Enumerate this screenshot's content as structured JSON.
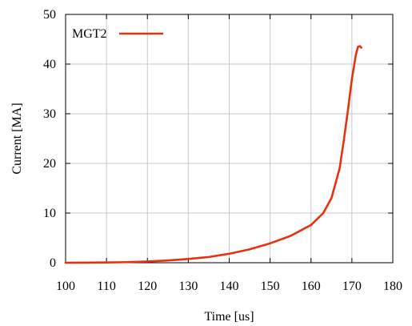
{
  "chart_data": {
    "type": "line",
    "title": "",
    "xlabel": "Time [us]",
    "ylabel": "Current [MA]",
    "xlim": [
      100,
      180
    ],
    "ylim": [
      0,
      50
    ],
    "x_ticks": [
      "100",
      "110",
      "120",
      "130",
      "140",
      "150",
      "160",
      "170",
      "180"
    ],
    "y_ticks": [
      "0",
      "10",
      "20",
      "30",
      "40",
      "50"
    ],
    "grid": true,
    "legend_position": "top-left",
    "series": [
      {
        "name": "MGT2",
        "color": "#e8320e",
        "x": [
          100,
          110,
          115,
          120,
          125,
          130,
          135,
          140,
          145,
          150,
          155,
          160,
          163,
          165,
          167,
          168,
          169,
          170,
          171,
          171.5,
          172,
          172.3
        ],
        "y": [
          0.0,
          0.05,
          0.12,
          0.25,
          0.45,
          0.75,
          1.15,
          1.8,
          2.7,
          3.9,
          5.4,
          7.6,
          10.0,
          13.0,
          19.0,
          24.5,
          30.5,
          37.0,
          42.0,
          43.5,
          43.6,
          43.3
        ]
      }
    ]
  }
}
